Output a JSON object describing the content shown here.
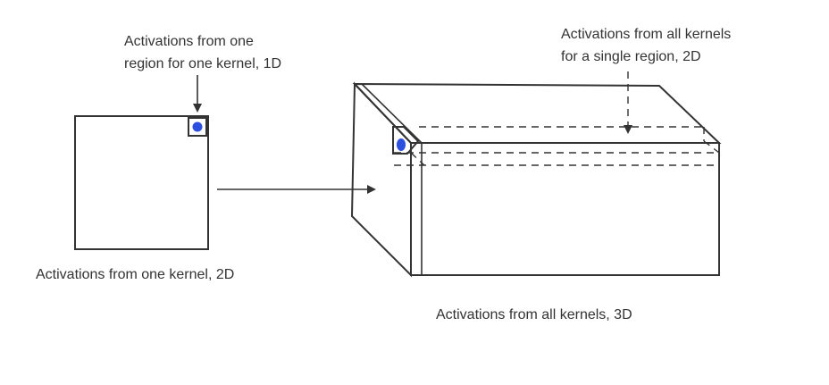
{
  "labels": {
    "one_region_line1": "Activations from one",
    "one_region_line2": "region for one kernel, 1D",
    "all_kernels_region_line1": "Activations from all kernels",
    "all_kernels_region_line2": "for a single region, 2D",
    "one_kernel": "Activations from one kernel, 2D",
    "all_kernels": "Activations from all kernels, 3D"
  },
  "colors": {
    "stroke": "#333333",
    "text": "#333333",
    "activation_dot": "#2d4fe0"
  }
}
